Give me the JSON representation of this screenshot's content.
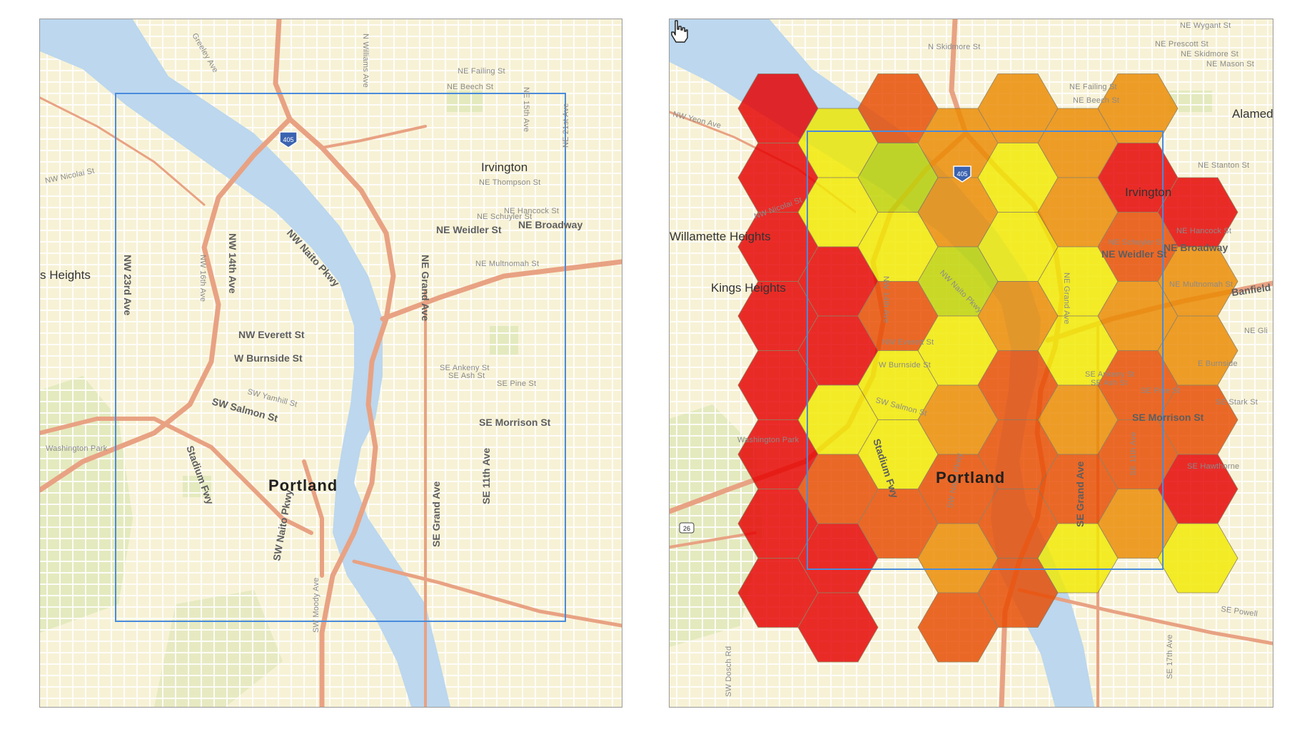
{
  "maps": {
    "left": {
      "city": "Portland",
      "places": [
        "Irvington",
        "s Heights",
        "Washington Park"
      ],
      "streets": {
        "nw_nicolai": "NW Nicolai St",
        "ne_weidler": "NE Weidler St",
        "ne_broadway": "NE Broadway",
        "nw_naito": "NW Naito Pkwy",
        "ne_grand": "NE Grand Ave",
        "nw_14th": "NW 14th Ave",
        "nw_16th": "NW 16th Ave",
        "nw_23rd": "NW 23rd Ave",
        "nw_everett": "NW Everett St",
        "w_burnside": "W Burnside St",
        "sw_salmon": "SW Salmon St",
        "sw_yamhill": "SW Yamhill St",
        "stadium_fwy": "Stadium Fwy",
        "se_morrison": "SE Morrison St",
        "se_grand": "SE Grand Ave",
        "se_11th": "SE 11th Ave",
        "sw_naito": "SW Naito Pkwy",
        "ne_hancock": "NE Hancock St",
        "ne_schuyler": "NE Schuyler St",
        "ne_multnomah": "NE Multnomah St",
        "ne_failing": "NE Failing St",
        "ne_beech": "NE Beech St",
        "ne_thompson": "NE Thompson St",
        "se_ankeny": "SE Ankeny St",
        "se_ash": "SE Ash St",
        "se_pine": "SE Pine St",
        "ne_21st": "NE 21st Ave",
        "ne_15th": "NE 15th Ave",
        "greeley": "Greeley Ave",
        "n_williams": "N Williams Ave",
        "sw_moody": "SW Moody Ave"
      },
      "shield": "405"
    },
    "right": {
      "city": "Portland",
      "places": [
        "Irvington",
        "Kings Heights",
        "Willamette Heights",
        "Washington Park",
        "Alameda"
      ],
      "streets": {
        "nw_yeon": "NW Yeon Ave",
        "nw_nicolai": "NW Nicolai St",
        "ne_weidler": "NE Weidler St",
        "ne_broadway": "NE Broadway",
        "nw_naito": "NW Naito Pkwy",
        "ne_grand": "NE Grand Ave",
        "nw_14th": "NW 14th Ave",
        "nw_everett": "NW Everett St",
        "w_burnside": "W Burnside St",
        "sw_salmon": "SW Salmon St",
        "stadium_fwy": "Stadium Fwy",
        "se_morrison": "SE Morrison St",
        "se_grand": "SE Grand Ave",
        "se_11th": "SE 11th Ave",
        "se_hawthorne": "SE Hawthorne",
        "banfield": "Banfield",
        "e_burnside": "E Burnside",
        "se_powell": "SE Powell",
        "ne_failing": "NE Failing St",
        "ne_beech": "NE Beech St",
        "ne_prescott": "NE Prescott St",
        "ne_skidmore": "NE Skidmore St",
        "ne_stanton": "NE Stanton St",
        "ne_hancock": "NE Hancock St",
        "ne_multnomah": "NE Multnomah St",
        "ne_schuyler": "NE Schuyler St",
        "ne_mason": "NE Mason St",
        "n_skidmore": "N Skidmore St",
        "ne_wygant": "NE Wygant St",
        "se_ankeny": "SE Ankeny St",
        "se_ash": "SE Ash St",
        "se_pine": "SE Pine St",
        "se_stark": "SE Stark St",
        "se_17th": "SE 17th Ave",
        "sw_dosch": "SW Dosch Rd",
        "ne_glisan": "NE Gli",
        "sw_naito": "SW Naito Pkwy"
      },
      "shield": "405",
      "shield_26": "26"
    }
  },
  "colors": {
    "land": "#f7f2d6",
    "water": "#bcd7ee",
    "park": "#dfe7b8",
    "road_major": "#e8a283",
    "road_minor": "#ffffff",
    "extent_box": "#4a8bdc",
    "hex_red": "#e60000",
    "hex_orange_red": "#e84a00",
    "hex_orange": "#eb8a00",
    "hex_yellow": "#f2ea00",
    "hex_yellow_green": "#bfd300"
  },
  "hexbin_classes": [
    "hex_red",
    "hex_orange_red",
    "hex_orange",
    "hex_yellow",
    "hex_yellow_green"
  ],
  "cursor_icon": "hand-pointer-icon"
}
